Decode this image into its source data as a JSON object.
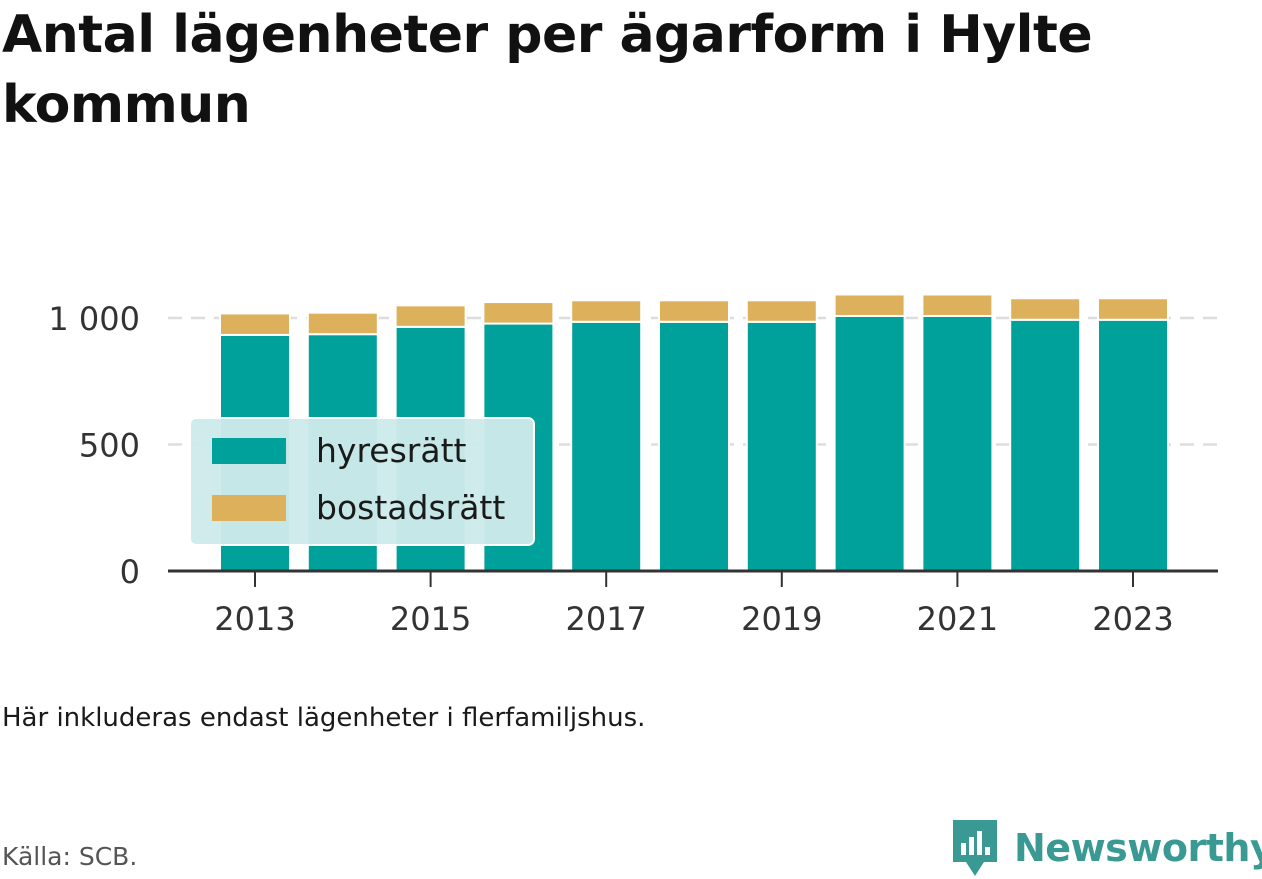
{
  "title": "Antal lägenheter per ägarform i Hylte kommun",
  "note": "Här inkluderas endast lägenheter i flerfamiljshus.",
  "source": "Källa: SCB.",
  "brand": {
    "name": "Newsworthy",
    "icon": "newsworthy-logo-icon",
    "color": "#3a9a93"
  },
  "colors": {
    "hyresratt": "#00a19a",
    "bostadsratt": "#ddb15b",
    "legend_bg": "#cdeaea"
  },
  "chart_data": {
    "type": "bar",
    "stacked": true,
    "categories": [
      "2013",
      "2014",
      "2015",
      "2016",
      "2017",
      "2018",
      "2019",
      "2020",
      "2021",
      "2022",
      "2023"
    ],
    "x_tick_labels": [
      "2013",
      "2015",
      "2017",
      "2019",
      "2021",
      "2023"
    ],
    "y_ticks": [
      0,
      500,
      1000
    ],
    "y_tick_labels": [
      "0",
      "500",
      "1 000"
    ],
    "ylim": [
      0,
      1100
    ],
    "grid": true,
    "legend_position": "left-middle",
    "series": [
      {
        "name": "hyresrätt",
        "color": "#00a19a",
        "values": [
          933,
          936,
          965,
          978,
          985,
          985,
          985,
          1008,
          1008,
          993,
          993
        ]
      },
      {
        "name": "bostadsrätt",
        "color": "#ddb15b",
        "values": [
          85,
          85,
          85,
          85,
          85,
          85,
          85,
          85,
          85,
          85,
          85
        ]
      }
    ]
  }
}
